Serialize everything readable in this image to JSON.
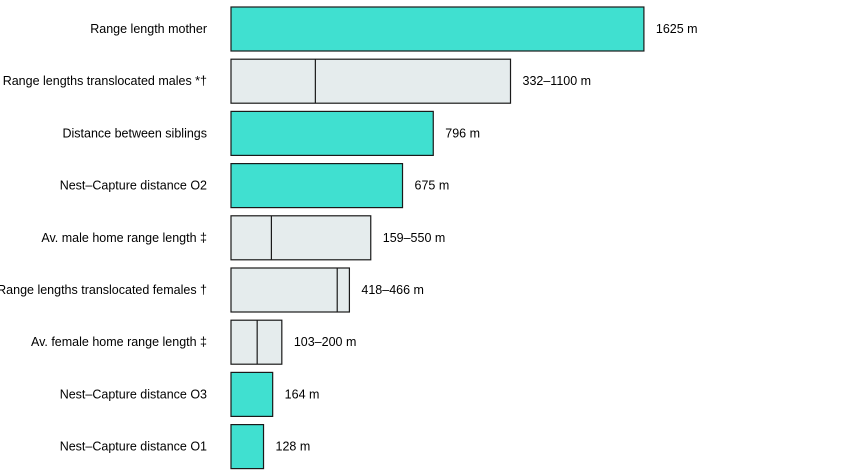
{
  "chart_data": {
    "type": "bar",
    "orientation": "horizontal",
    "unit": "m",
    "colors": {
      "single": "#40e0d0",
      "range": "#e5eced",
      "stroke": "#1a1a1a"
    },
    "bars": [
      {
        "label": "Range length mother",
        "kind": "single",
        "value": 1625,
        "value_label": "1625 m"
      },
      {
        "label": "Range lengths translocated males *†",
        "kind": "range",
        "min": 332,
        "max": 1100,
        "value_label": "332–1100 m"
      },
      {
        "label": "Distance between siblings",
        "kind": "single",
        "value": 796,
        "value_label": "796 m"
      },
      {
        "label": "Nest–Capture distance O2",
        "kind": "single",
        "value": 675,
        "value_label": "675 m"
      },
      {
        "label": "Av. male home range length ‡",
        "kind": "range",
        "min": 159,
        "max": 550,
        "value_label": "159–550 m"
      },
      {
        "label": "Range lengths translocated females †",
        "kind": "range",
        "min": 418,
        "max": 466,
        "value_label": "418–466 m"
      },
      {
        "label": "Av. female home range length ‡",
        "kind": "range",
        "min": 103,
        "max": 200,
        "value_label": "103–200 m"
      },
      {
        "label": "Nest–Capture distance O3",
        "kind": "single",
        "value": 164,
        "value_label": "164 m"
      },
      {
        "label": "Nest–Capture distance O1",
        "kind": "single",
        "value": 128,
        "value_label": "128 m"
      }
    ]
  }
}
